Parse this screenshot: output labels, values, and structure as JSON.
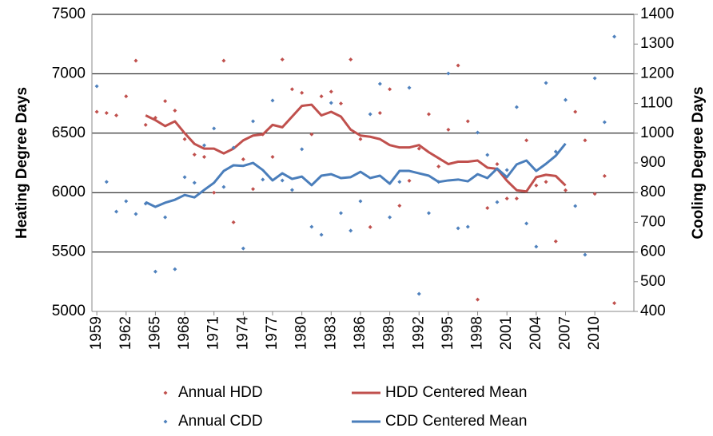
{
  "chart_data": {
    "type": "line",
    "ylabel": "Heating Degree Days",
    "y2label": "Cooling Degree Days",
    "x": [
      1959,
      1960,
      1961,
      1962,
      1963,
      1964,
      1965,
      1966,
      1967,
      1968,
      1969,
      1970,
      1971,
      1972,
      1973,
      1974,
      1975,
      1976,
      1977,
      1978,
      1979,
      1980,
      1981,
      1982,
      1983,
      1984,
      1985,
      1986,
      1987,
      1988,
      1989,
      1990,
      1991,
      1992,
      1993,
      1994,
      1995,
      1996,
      1997,
      1998,
      1999,
      2000,
      2001,
      2002,
      2003,
      2004,
      2005,
      2006,
      2007,
      2008,
      2009,
      2010,
      2011,
      2012
    ],
    "xlim": [
      1958.5,
      2014
    ],
    "xticks": [
      1959,
      1962,
      1965,
      1968,
      1971,
      1974,
      1977,
      1980,
      1983,
      1986,
      1989,
      1992,
      1995,
      1998,
      2001,
      2004,
      2007,
      2010
    ],
    "ylim": [
      5000,
      7500
    ],
    "yticks": [
      5000,
      5500,
      6000,
      6500,
      7000,
      7500
    ],
    "y2lim": [
      400,
      1400
    ],
    "y2ticks": [
      400,
      500,
      600,
      700,
      800,
      900,
      1000,
      1100,
      1200,
      1300,
      1400
    ],
    "grid": true,
    "series": [
      {
        "name": "Annual HDD",
        "kind": "scatter",
        "color": "#c0504d",
        "values": [
          6680,
          6670,
          6650,
          6810,
          7110,
          6570,
          6630,
          6770,
          6690,
          6450,
          6320,
          6300,
          6000,
          7110,
          5750,
          6280,
          6030,
          6490,
          6300,
          7120,
          6870,
          6840,
          6490,
          6810,
          6850,
          6750,
          7120,
          6450,
          5710,
          6670,
          6870,
          5890,
          6100,
          6370,
          6660,
          6220,
          6530,
          7070,
          6600,
          5100,
          5870,
          6240,
          5950,
          5950,
          6440,
          6060,
          6090,
          5590,
          6020,
          6680,
          6440,
          5990,
          6140,
          5070
        ]
      },
      {
        "name": "HDD Centered Mean",
        "kind": "line",
        "color": "#c0504d",
        "values": [
          null,
          null,
          null,
          null,
          null,
          6650,
          6610,
          6560,
          6600,
          6500,
          6410,
          6370,
          6370,
          6330,
          6370,
          6440,
          6480,
          6490,
          6570,
          6550,
          6640,
          6730,
          6740,
          6650,
          6680,
          6640,
          6530,
          6480,
          6470,
          6450,
          6400,
          6380,
          6380,
          6400,
          6340,
          6290,
          6240,
          6260,
          6260,
          6270,
          6210,
          6200,
          6100,
          6020,
          6010,
          6130,
          6150,
          6140,
          6060,
          null,
          null,
          null,
          null,
          null
        ]
      },
      {
        "name": "Annual CDD",
        "kind": "scatter",
        "axis": "y2",
        "color": "#4f81bd",
        "values": [
          1158,
          836,
          736,
          771,
          728,
          763,
          534,
          717,
          542,
          852,
          833,
          959,
          1016,
          819,
          951,
          612,
          1040,
          844,
          1110,
          841,
          809,
          946,
          685,
          658,
          1102,
          731,
          672,
          771,
          1064,
          1166,
          717,
          836,
          1153,
          459,
          731,
          836,
          1201,
          680,
          685,
          1002,
          927,
          768,
          876,
          1088,
          696,
          618,
          1169,
          938,
          1112,
          755,
          591,
          1185,
          1037,
          1325
        ]
      },
      {
        "name": "CDD Centered Mean",
        "kind": "line",
        "axis": "y2",
        "color": "#4a7ebb",
        "values": [
          null,
          null,
          null,
          null,
          null,
          768,
          752,
          766,
          776,
          792,
          784,
          809,
          833,
          873,
          892,
          890,
          900,
          876,
          841,
          865,
          846,
          854,
          825,
          857,
          862,
          849,
          852,
          870,
          849,
          857,
          830,
          873,
          873,
          865,
          857,
          836,
          841,
          844,
          838,
          862,
          849,
          881,
          852,
          895,
          908,
          873,
          897,
          924,
          965,
          null,
          null,
          null,
          null,
          null
        ]
      }
    ]
  }
}
